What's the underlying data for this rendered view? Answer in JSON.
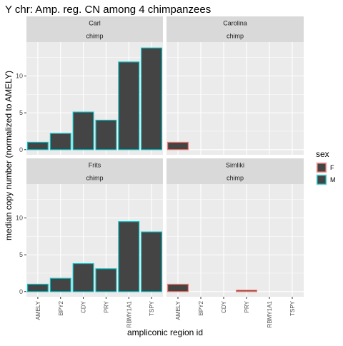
{
  "title": "Y chr: Amp. reg. CN among 4 chimpanzees",
  "xlabel": "ampliconic region id",
  "ylabel": "median copy number (normalized to AMELY)",
  "colors": {
    "panel_bg": "#ebebeb",
    "grid": "#ffffff",
    "strip_bg": "#d9d9d9",
    "bar_fill": "#444444",
    "sex_F": "#f8766d",
    "sex_M": "#00bfc4"
  },
  "legend": {
    "title": "sex",
    "position": "right",
    "items": [
      {
        "label": "F",
        "color": "#f8766d"
      },
      {
        "label": "M",
        "color": "#00bfc4"
      }
    ]
  },
  "chart_data": {
    "type": "bar",
    "title": "Y chr: Amp. reg. CN among 4 chimpanzees",
    "xlabel": "ampliconic region id",
    "ylabel": "median copy number (normalized to AMELY)",
    "categories": [
      "AMELY",
      "BPY2",
      "CDY",
      "PRY",
      "RBMY1A1",
      "TSPY"
    ],
    "y_ticks": [
      0,
      5,
      10
    ],
    "ylim": [
      -0.7,
      14.6
    ],
    "grid": true,
    "facet_rows": 2,
    "facet_cols": 2,
    "panels": [
      {
        "name": "Carl",
        "species": "chimp",
        "sex": "M",
        "values": [
          1.0,
          2.2,
          5.1,
          4.0,
          11.9,
          13.8
        ]
      },
      {
        "name": "Carolina",
        "species": "chimp",
        "sex": "F",
        "values": [
          1.0,
          null,
          null,
          null,
          null,
          null
        ]
      },
      {
        "name": "Frits",
        "species": "chimp",
        "sex": "M",
        "values": [
          1.0,
          1.8,
          3.8,
          3.1,
          9.5,
          8.1
        ]
      },
      {
        "name": "Simliki",
        "species": "chimp",
        "sex": "F",
        "values": [
          1.0,
          null,
          null,
          0.2,
          null,
          null
        ]
      }
    ]
  }
}
